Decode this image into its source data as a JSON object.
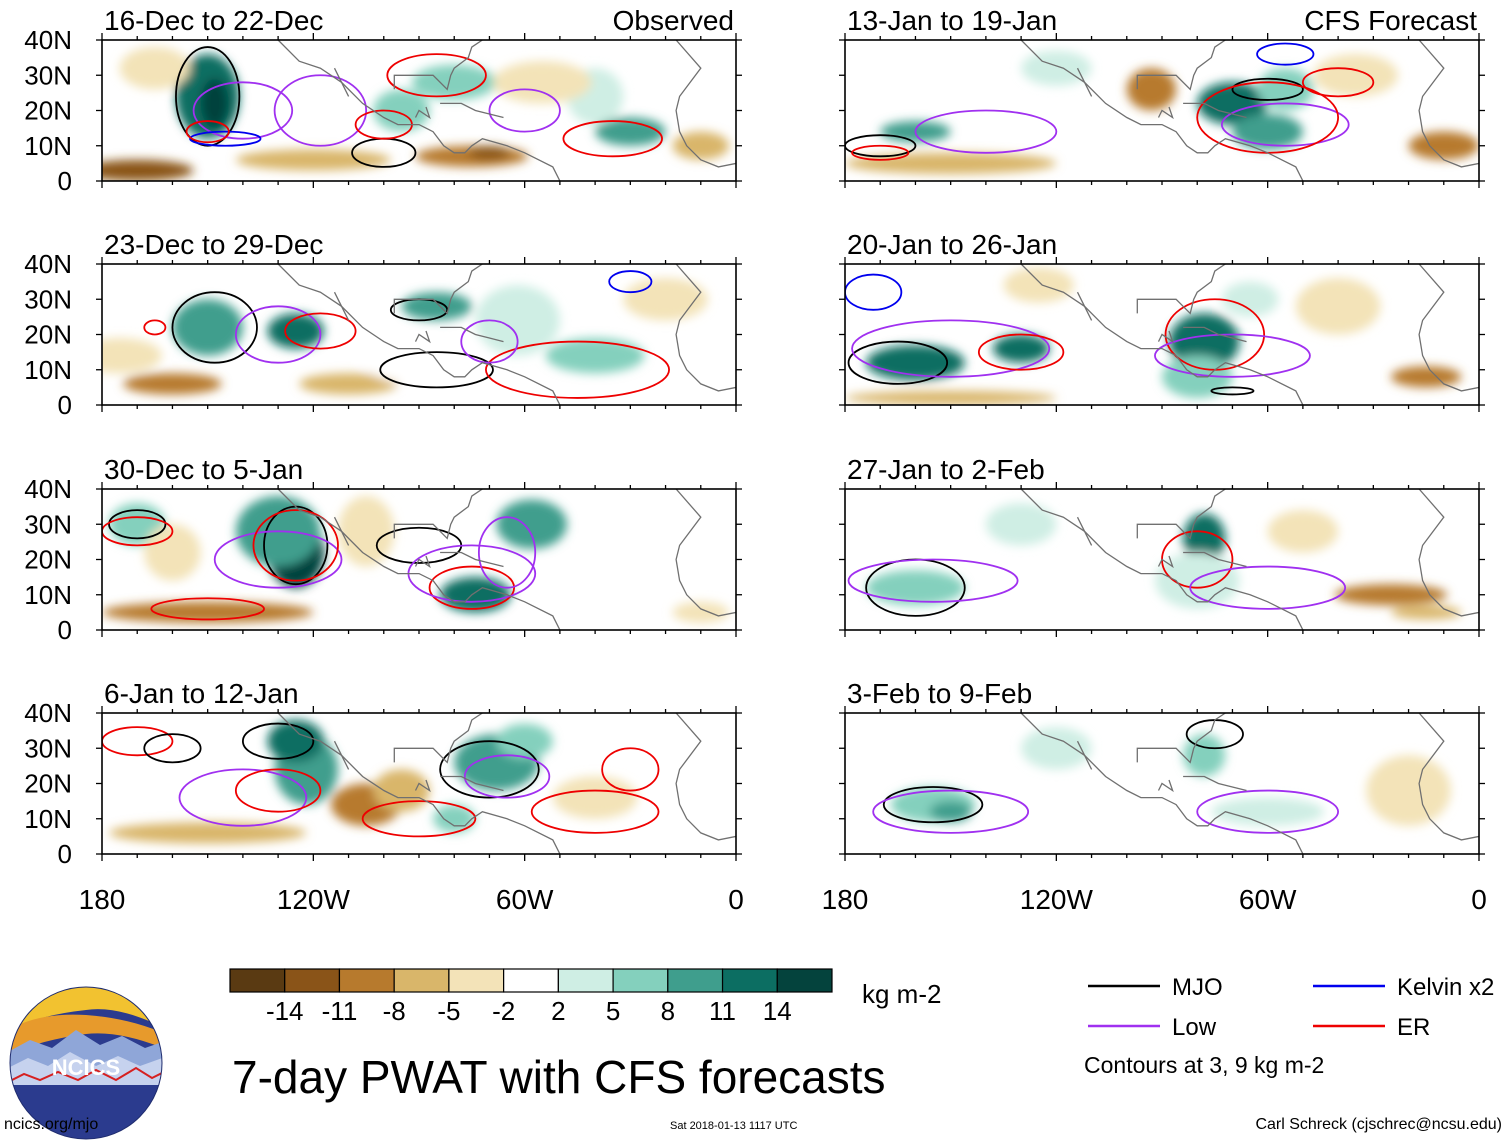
{
  "chart_data": {
    "type": "heatmap",
    "title": "7-day PWAT with CFS forecasts",
    "variable": "PWAT anomaly",
    "units": "kg m-2",
    "x_ticks": [
      "180",
      "120W",
      "60W",
      "0"
    ],
    "y_ticks": [
      "40N",
      "30N",
      "20N",
      "10N",
      "0"
    ],
    "xlim": [
      -180,
      0
    ],
    "ylim": [
      0,
      40
    ],
    "colorbar": {
      "labels": [
        "-14",
        "-11",
        "-8",
        "-5",
        "-2",
        "2",
        "5",
        "8",
        "11",
        "14"
      ],
      "colors": [
        "#5a3a12",
        "#8a5418",
        "#b77a2d",
        "#d9b66a",
        "#f3e3b8",
        "#ffffff",
        "#cfeee4",
        "#84d0bd",
        "#3f9e8d",
        "#0c6e62",
        "#04433d"
      ]
    },
    "legend": [
      {
        "label": "MJO",
        "color": "#000000"
      },
      {
        "label": "Kelvin x2",
        "color": "#0000ee"
      },
      {
        "label": "Low",
        "color": "#a030f0"
      },
      {
        "label": "ER",
        "color": "#ee0000"
      }
    ],
    "contour_note": "Contours at 3, 9 kg m-2",
    "panels": [
      {
        "period": "16-Dec to 22-Dec",
        "tag": "Observed"
      },
      {
        "period": "23-Dec to 29-Dec",
        "tag": ""
      },
      {
        "period": "30-Dec to 5-Jan",
        "tag": ""
      },
      {
        "period": "6-Jan to 12-Jan",
        "tag": ""
      },
      {
        "period": "13-Jan to 19-Jan",
        "tag": "CFS Forecast"
      },
      {
        "period": "20-Jan to 26-Jan",
        "tag": ""
      },
      {
        "period": "27-Jan to 2-Feb",
        "tag": ""
      },
      {
        "period": "3-Feb to 9-Feb",
        "tag": ""
      }
    ]
  },
  "logo": {
    "text": "NCICS"
  },
  "footer": {
    "url": "ncics.org/mjo",
    "timestamp": "Sat 2018-01-13 1117 UTC",
    "credit": "Carl Schreck (cjschrec@ncsu.edu)"
  }
}
